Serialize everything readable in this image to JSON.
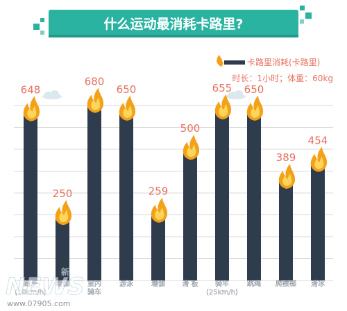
{
  "chart_data": {
    "type": "bar",
    "title": "什么运动最消耗卡路里?",
    "legend_label": "卡路里消耗(卡路里)",
    "subtitle": "时长：1小时；体重：60kg",
    "categories": [
      [
        "跑步",
        "(10km/h)"
      ],
      [
        "瑜伽"
      ],
      [
        "室内",
        "骑车"
      ],
      [
        "游泳"
      ],
      [
        "瑜伽"
      ],
      [
        "滑 板"
      ],
      [
        "骑车",
        "(25km/h)"
      ],
      [
        "跳绳"
      ],
      [
        "爬楼梯"
      ],
      [
        "滑冰"
      ]
    ],
    "values": [
      648,
      250,
      680,
      650,
      259,
      500,
      655,
      650,
      389,
      454
    ],
    "value_labels": [
      "648",
      "250",
      "680",
      "650",
      "259",
      "500",
      "655",
      "650",
      "389",
      "454"
    ],
    "ylim": [
      0,
      740
    ],
    "grid": true,
    "legend_position": "top-right",
    "watermark": [
      "新大众",
      "NEWS",
      "www.07905.com"
    ],
    "colors": {
      "bar": "#2f3c4e",
      "value_text": "#e8705f",
      "title_banner": "#2bb3a1",
      "title_text": "#ffffff",
      "flame_outer": "#f4a11a",
      "flame_inner": "#fbd65a",
      "grid": "#d8d8d8",
      "axis_text": "#ffffff",
      "subtitle_text": "#e8705f"
    }
  }
}
